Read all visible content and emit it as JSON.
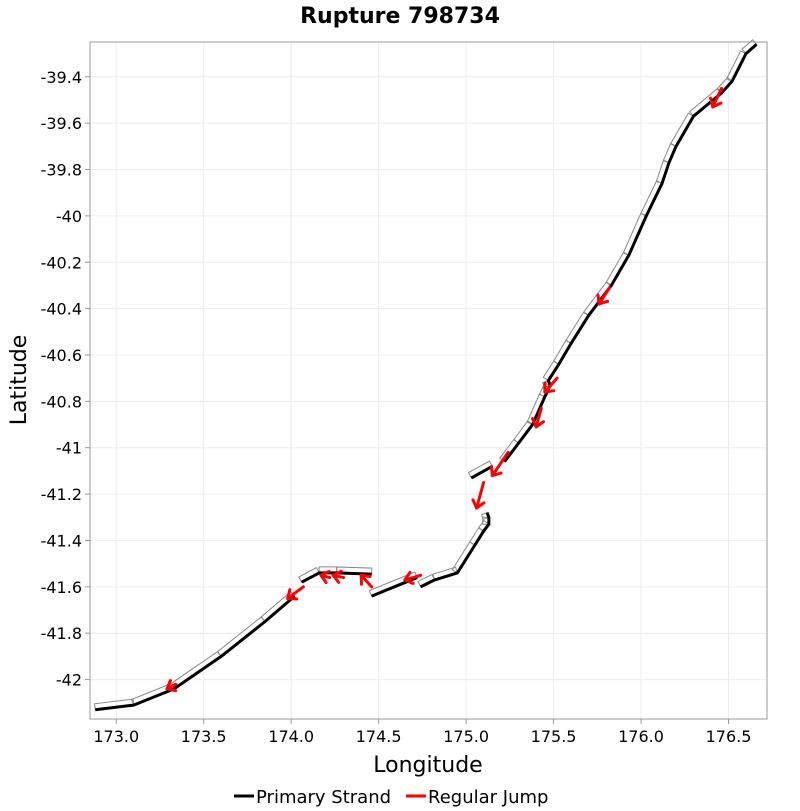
{
  "chart_data": {
    "type": "line",
    "title": "Rupture 798734",
    "xlabel": "Longitude",
    "ylabel": "Latitude",
    "xlim": [
      172.85,
      176.72
    ],
    "ylim": [
      -42.17,
      -39.25
    ],
    "xticks": [
      173.0,
      173.5,
      174.0,
      174.5,
      175.0,
      175.5,
      176.0,
      176.5
    ],
    "xtick_labels": [
      "173.0",
      "173.5",
      "174.0",
      "174.5",
      "175.0",
      "175.5",
      "176.0",
      "176.5"
    ],
    "yticks": [
      -39.4,
      -39.6,
      -39.8,
      -40.0,
      -40.2,
      -40.4,
      -40.6,
      -40.8,
      -41.0,
      -41.2,
      -41.4,
      -41.6,
      -41.8,
      -42.0
    ],
    "ytick_labels": [
      "-39.4",
      "-39.6",
      "-39.8",
      "-40",
      "-40.2",
      "-40.4",
      "-40.6",
      "-40.8",
      "-41",
      "-41.2",
      "-41.4",
      "-41.6",
      "-41.8",
      "-42"
    ],
    "grid": true,
    "legend_position": "bottom-center",
    "legend": [
      {
        "label": "Primary Strand",
        "color": "#000000"
      },
      {
        "label": "Regular Jump",
        "color": "#ff0000"
      }
    ],
    "series": [
      {
        "name": "Primary Strand",
        "color": "#000000",
        "segments": [
          [
            [
              172.88,
              -42.13
            ],
            [
              173.1,
              -42.11
            ],
            [
              173.33,
              -42.04
            ],
            [
              173.6,
              -41.9
            ],
            [
              173.85,
              -41.75
            ],
            [
              174.02,
              -41.64
            ]
          ],
          [
            [
              174.06,
              -41.58
            ],
            [
              174.16,
              -41.54
            ],
            [
              174.26,
              -41.54
            ],
            [
              174.46,
              -41.545
            ]
          ],
          [
            [
              174.46,
              -41.64
            ],
            [
              174.72,
              -41.56
            ]
          ],
          [
            [
              174.74,
              -41.6
            ],
            [
              174.82,
              -41.57
            ],
            [
              174.95,
              -41.54
            ],
            [
              175.05,
              -41.42
            ],
            [
              175.1,
              -41.36
            ],
            [
              175.13,
              -41.33
            ],
            [
              175.13,
              -41.3
            ],
            [
              175.12,
              -41.28
            ]
          ],
          [
            [
              175.03,
              -41.13
            ],
            [
              175.15,
              -41.08
            ]
          ],
          [
            [
              175.22,
              -41.06
            ],
            [
              175.3,
              -40.98
            ],
            [
              175.38,
              -40.9
            ],
            [
              175.45,
              -40.78
            ],
            [
              175.47,
              -40.75
            ],
            [
              175.48,
              -40.73
            ],
            [
              175.47,
              -40.71
            ],
            [
              175.53,
              -40.64
            ],
            [
              175.6,
              -40.55
            ],
            [
              175.7,
              -40.43
            ],
            [
              175.83,
              -40.3
            ],
            [
              175.93,
              -40.17
            ],
            [
              176.03,
              -40.0
            ],
            [
              176.12,
              -39.86
            ],
            [
              176.16,
              -39.77
            ],
            [
              176.2,
              -39.7
            ],
            [
              176.3,
              -39.57
            ],
            [
              176.46,
              -39.47
            ],
            [
              176.52,
              -39.42
            ],
            [
              176.6,
              -39.3
            ],
            [
              176.66,
              -39.26
            ]
          ]
        ]
      },
      {
        "name": "Regular Jump",
        "color": "#ff0000",
        "jumps": [
          [
            [
              173.34,
              -42.02
            ],
            [
              173.29,
              -42.04
            ]
          ],
          [
            [
              174.07,
              -41.6
            ],
            [
              173.98,
              -41.65
            ]
          ],
          [
            [
              174.22,
              -41.56
            ],
            [
              174.17,
              -41.55
            ]
          ],
          [
            [
              174.3,
              -41.56
            ],
            [
              174.24,
              -41.55
            ]
          ],
          [
            [
              174.46,
              -41.6
            ],
            [
              174.4,
              -41.55
            ]
          ],
          [
            [
              174.74,
              -41.55
            ],
            [
              174.65,
              -41.57
            ]
          ],
          [
            [
              175.1,
              -41.15
            ],
            [
              175.06,
              -41.26
            ]
          ],
          [
            [
              175.24,
              -41.02
            ],
            [
              175.15,
              -41.12
            ]
          ],
          [
            [
              175.43,
              -40.83
            ],
            [
              175.4,
              -40.91
            ]
          ],
          [
            [
              175.52,
              -40.7
            ],
            [
              175.45,
              -40.76
            ]
          ],
          [
            [
              175.82,
              -40.31
            ],
            [
              175.76,
              -40.38
            ]
          ],
          [
            [
              176.46,
              -39.45
            ],
            [
              176.41,
              -39.53
            ]
          ]
        ]
      }
    ]
  }
}
